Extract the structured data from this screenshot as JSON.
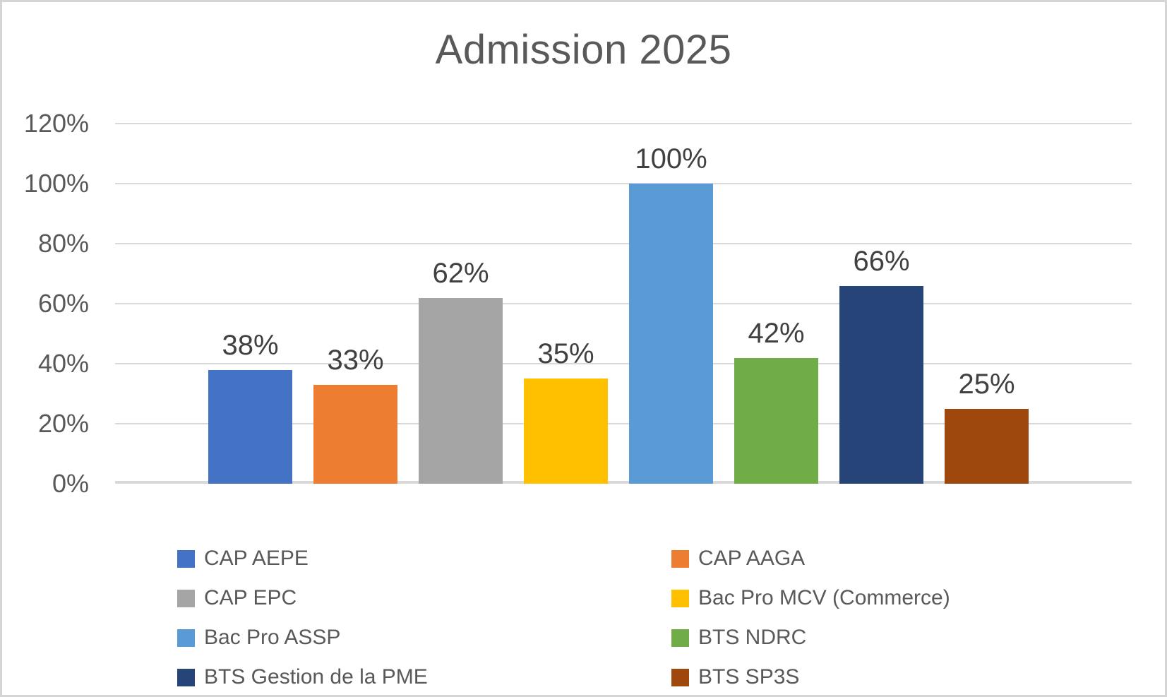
{
  "chart_data": {
    "type": "bar",
    "title": "Admission 2025",
    "categories": [
      "CAP AEPE",
      "CAP AAGA",
      "CAP EPC",
      "Bac Pro MCV (Commerce)",
      "Bac Pro ASSP",
      "BTS NDRC",
      "BTS Gestion de la PME",
      "BTS SP3S"
    ],
    "values": [
      38,
      33,
      62,
      35,
      100,
      42,
      66,
      25
    ],
    "data_labels": [
      "38%",
      "33%",
      "62%",
      "35%",
      "100%",
      "42%",
      "66%",
      "25%"
    ],
    "colors": [
      "#4472C4",
      "#ED7D31",
      "#A5A5A5",
      "#FFC000",
      "#5B9BD5",
      "#70AD47",
      "#264478",
      "#9E480E"
    ],
    "xlabel": "",
    "ylabel": "",
    "ylim": [
      0,
      120
    ],
    "yticks": [
      0,
      20,
      40,
      60,
      80,
      100,
      120
    ],
    "ytick_labels": [
      "0%",
      "20%",
      "40%",
      "60%",
      "80%",
      "100%",
      "120%"
    ],
    "grid": "horizontal",
    "gridline_color": "#D9D9D9",
    "legend_position": "bottom-two-columns",
    "text_colors": {
      "title": "#595959",
      "axis_labels": "#595959",
      "data_labels": "#404040",
      "legend": "#595959"
    }
  }
}
